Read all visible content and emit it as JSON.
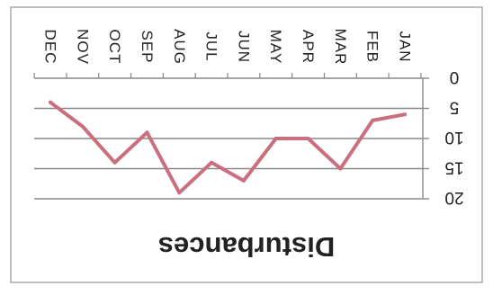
{
  "chart_data": {
    "type": "line",
    "title": "Disturbances",
    "x": [
      "JAN",
      "FEB",
      "MAR",
      "APR",
      "MAY",
      "JUN",
      "JUL",
      "AUG",
      "SEP",
      "OCT",
      "NOV",
      "DEC"
    ],
    "series": [
      {
        "values": [
          6,
          7,
          15,
          10,
          10,
          17,
          14,
          19,
          9,
          14,
          8,
          4
        ]
      }
    ],
    "yticks": [
      "0",
      "5",
      "10",
      "15",
      "20"
    ],
    "ylim": [
      0,
      20
    ],
    "grid": true,
    "orientation": "rotated-180",
    "colors": {
      "line": "#c96f7e",
      "grid": "#888888",
      "text": "#222222",
      "frame": "#aaaaaa"
    }
  }
}
